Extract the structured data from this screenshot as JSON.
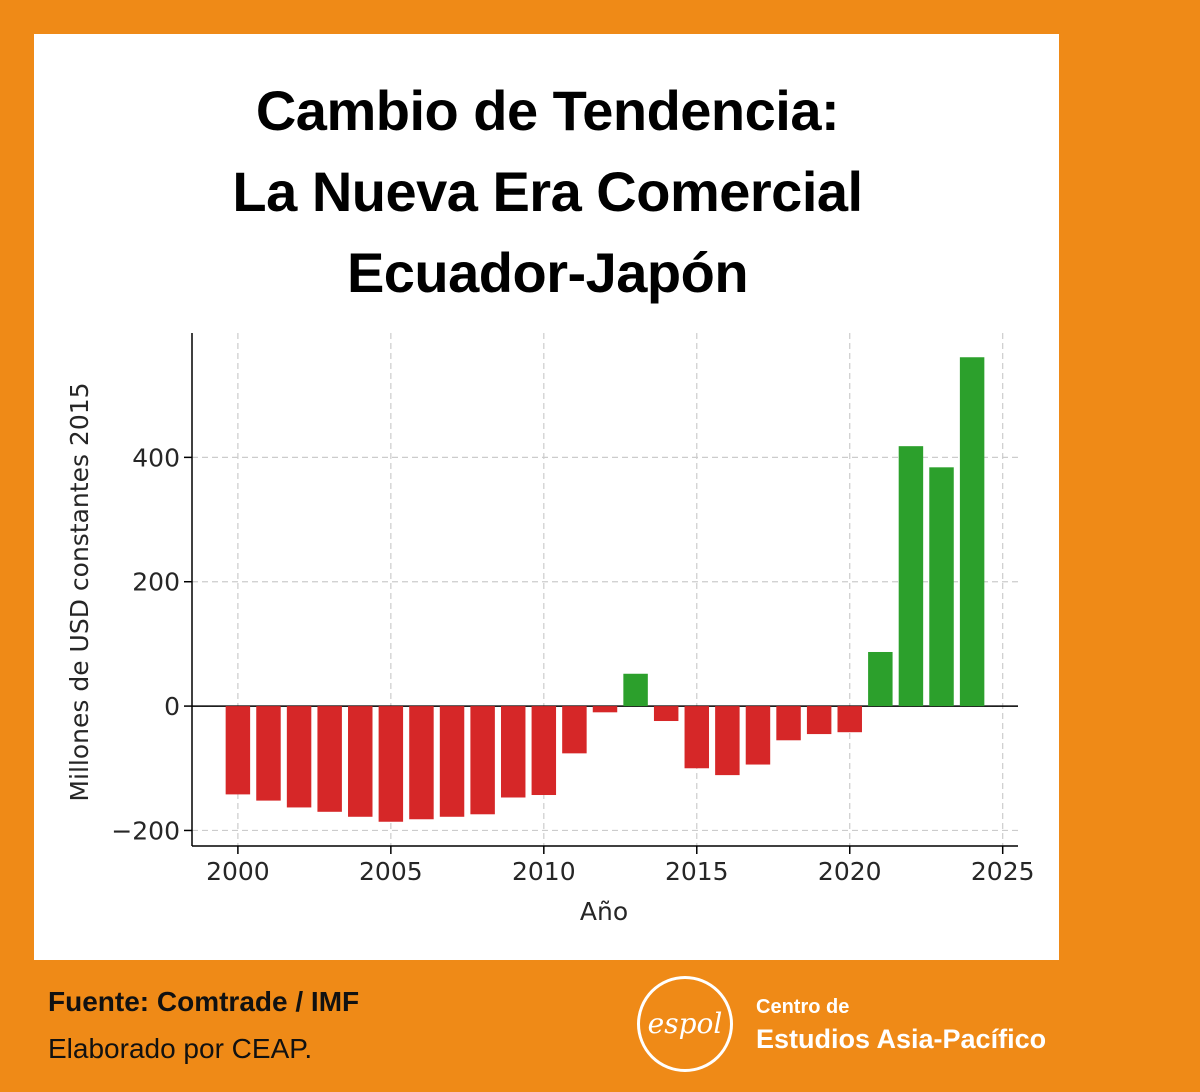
{
  "title_lines": [
    "Cambio de Tendencia:",
    "La Nueva Era Comercial",
    "Ecuador-Japón"
  ],
  "footer": {
    "source": "Fuente: Comtrade / IMF",
    "credit": "Elaborado por CEAP."
  },
  "logo": {
    "wordmark": "espol",
    "org_line1": "Centro de",
    "org_line2": "Estudios Asia-Pacífico"
  },
  "colors": {
    "frame": "#ef8a17",
    "negative": "#d62728",
    "positive": "#2ca02c"
  },
  "chart_data": {
    "type": "bar",
    "title": "",
    "xlabel": "Año",
    "ylabel": "Millones de USD constantes 2015",
    "xlim": [
      1998.5,
      2025.5
    ],
    "ylim": [
      -225,
      600
    ],
    "x_ticks": [
      "2000",
      "2005",
      "2010",
      "2015",
      "2020",
      "2025"
    ],
    "y_ticks": [
      "−200",
      "0",
      "200",
      "400"
    ],
    "y_tick_values": [
      -200,
      0,
      200,
      400
    ],
    "grid": true,
    "x": [
      2000,
      2001,
      2002,
      2003,
      2004,
      2005,
      2006,
      2007,
      2008,
      2009,
      2010,
      2011,
      2012,
      2013,
      2014,
      2015,
      2016,
      2017,
      2018,
      2019,
      2020,
      2021,
      2022,
      2023,
      2024
    ],
    "values": [
      -142,
      -152,
      -163,
      -170,
      -178,
      -186,
      -182,
      -178,
      -174,
      -147,
      -143,
      -76,
      -10,
      52,
      -24,
      -100,
      -111,
      -94,
      -55,
      -45,
      -42,
      87,
      418,
      384,
      561
    ],
    "color_rule": "green when value >= 0, red when value < 0"
  }
}
